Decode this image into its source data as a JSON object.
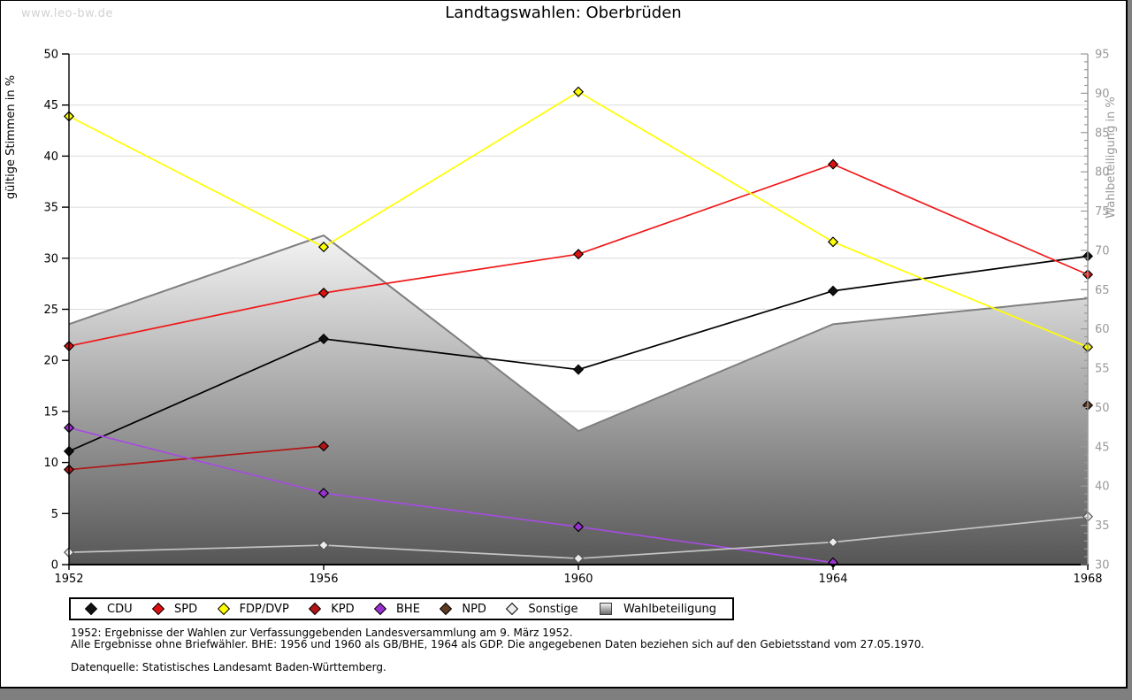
{
  "page": {
    "watermark": "www.leo-bw.de",
    "title": "Landtagswahlen: Oberbrüden"
  },
  "chart_data": {
    "type": "line",
    "title": "Landtagswahlen: Oberbrüden",
    "categories": [
      "1952",
      "1956",
      "1960",
      "1964",
      "1968"
    ],
    "left_axis": {
      "label": "gültige Stimmen in %",
      "min": 0,
      "max": 50,
      "tick_step": 5
    },
    "right_axis": {
      "label": "Wahlbeteiligung in %",
      "min": 30,
      "max": 95,
      "tick_step": 5,
      "minor_step": 1
    },
    "grid": true,
    "legend_position": "bottom",
    "colors": {
      "grid": "#dcdcdc",
      "left_axis": "#000000",
      "right_axis": "#999999",
      "area_edge": "#7f7f7f",
      "area_gradient_top": "#f4f4f4",
      "area_gradient_bottom": "#565656"
    },
    "series": [
      {
        "name": "CDU",
        "kind": "line",
        "axis": "left",
        "color": "#000000",
        "marker_fill": "#111111",
        "values": [
          11.1,
          22.1,
          19.1,
          26.8,
          30.2
        ]
      },
      {
        "name": "SPD",
        "kind": "line",
        "axis": "left",
        "color": "#f01818",
        "marker_fill": "#dd1111",
        "values": [
          21.4,
          26.6,
          30.4,
          39.2,
          28.4
        ]
      },
      {
        "name": "FDP/DVP",
        "kind": "line",
        "axis": "left",
        "color": "#ffff00",
        "marker_fill": "#ffff00",
        "values": [
          43.9,
          31.1,
          46.3,
          31.6,
          21.3
        ]
      },
      {
        "name": "KPD",
        "kind": "line",
        "axis": "left",
        "color": "#b41414",
        "marker_fill": "#b41414",
        "values": [
          9.3,
          11.6,
          null,
          null,
          null
        ]
      },
      {
        "name": "BHE",
        "kind": "line",
        "axis": "left",
        "color": "#a64ce0",
        "marker_fill": "#9a30d0",
        "values": [
          13.4,
          7.0,
          3.7,
          0.2,
          null
        ]
      },
      {
        "name": "NPD",
        "kind": "line",
        "axis": "left",
        "color": "#5e3a20",
        "marker_fill": "#5e3a20",
        "values": [
          null,
          null,
          null,
          null,
          15.6
        ]
      },
      {
        "name": "Sonstige",
        "kind": "line",
        "axis": "left",
        "color": "#c4c4c4",
        "marker_fill": "#ededed",
        "marker_stroke": "#555555",
        "values": [
          1.2,
          1.9,
          0.6,
          2.2,
          4.7
        ]
      },
      {
        "name": "Wahlbeteiligung",
        "kind": "area",
        "axis": "right",
        "color": "#7f7f7f",
        "values": [
          60.6,
          71.9,
          47.0,
          60.6,
          63.9
        ]
      }
    ]
  },
  "notes": {
    "line1": "1952: Ergebnisse der Wahlen zur Verfassunggebenden Landesversammlung am 9. März 1952.",
    "line2": "Alle Ergebnisse ohne Briefwähler. BHE: 1956 und 1960 als GB/BHE, 1964 als GDP. Die angegebenen Daten beziehen sich auf den Gebietsstand vom 27.05.1970.",
    "source": "Datenquelle: Statistisches Landesamt Baden-Württemberg."
  }
}
